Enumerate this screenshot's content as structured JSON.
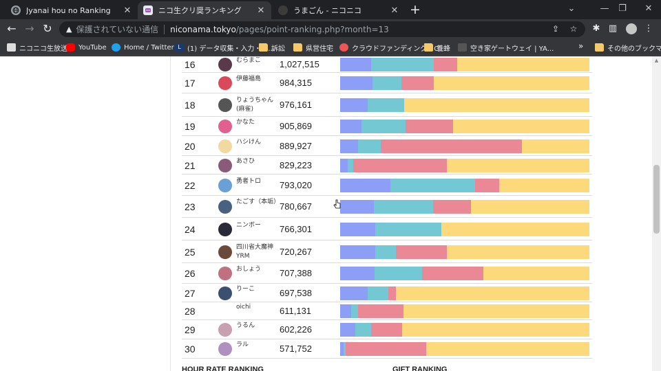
{
  "tabs": [
    {
      "title": "Jyanai hou no Ranking",
      "favicon": "globe-icon",
      "active": false
    },
    {
      "title": "ニコ生クリ奨ランキング",
      "favicon": "niconico-icon",
      "active": true
    },
    {
      "title": "うまごん - ニコニコ",
      "favicon": "niconico-dark-icon",
      "active": false
    }
  ],
  "toolbar": {
    "security_label": "保護されていない通信",
    "url_host": "niconama.tokyo",
    "url_path": "/pages/point-ranking.php?month=13"
  },
  "bookmarks": [
    {
      "label": "ニコニコ生放送",
      "icon": "niconico-icon"
    },
    {
      "label": "YouTube",
      "icon": "youtube-icon"
    },
    {
      "label": "Home / Twitter",
      "icon": "twitter-icon"
    },
    {
      "label": "(1) データ収集・入力・リ...",
      "icon": "lancers-icon"
    },
    {
      "label": "訴訟",
      "icon": "folder-icon"
    },
    {
      "label": "県営住宅",
      "icon": "folder-icon"
    },
    {
      "label": "クラウドファンディング - C...",
      "icon": "camp-icon"
    },
    {
      "label": "養蜂",
      "icon": "folder-icon"
    },
    {
      "label": "空き家ゲートウェイ | YA...",
      "icon": "akiya-icon"
    }
  ],
  "bookmarks_more": "»",
  "bookmarks_other": "その他のブックマーク",
  "colors": {
    "seg_blue": "#8c9ef5",
    "seg_teal": "#74c8d4",
    "seg_pink": "#ea8895",
    "seg_yellow": "#fcd97a"
  },
  "ranking": [
    {
      "rank": "16",
      "name": "むらまこ",
      "points": "1,027,515",
      "segments": [
        12.5,
        25.0,
        9.5,
        53.0
      ]
    },
    {
      "rank": "17",
      "name": "伊藤福島",
      "points": "984,315",
      "segments": [
        13.0,
        11.5,
        13.0,
        62.5
      ]
    },
    {
      "rank": "18",
      "name": "りょうちゃん(麻雀)",
      "points": "976,161",
      "segments": [
        11.0,
        14.7,
        0.0,
        74.3
      ]
    },
    {
      "rank": "19",
      "name": "かなた",
      "points": "905,869",
      "segments": [
        8.6,
        17.7,
        19.1,
        54.6
      ]
    },
    {
      "rank": "20",
      "name": "ハシけん",
      "points": "889,927",
      "segments": [
        7.2,
        9.1,
        56.6,
        27.1
      ]
    },
    {
      "rank": "21",
      "name": "あさひ",
      "points": "829,223",
      "segments": [
        3.0,
        2.2,
        37.7,
        57.1
      ]
    },
    {
      "rank": "22",
      "name": "勇者トロ",
      "points": "793,020",
      "segments": [
        20.2,
        34.0,
        9.7,
        36.1
      ]
    },
    {
      "rank": "23",
      "name": "たごす（本垢）",
      "points": "780,667",
      "segments": [
        13.5,
        23.8,
        15.2,
        47.5
      ]
    },
    {
      "rank": "24",
      "name": "ニンボー",
      "points": "766,301",
      "segments": [
        14.1,
        26.5,
        0.0,
        59.4
      ]
    },
    {
      "rank": "25",
      "name": "四川省大魔神YRM",
      "points": "720,267",
      "segments": [
        14.1,
        8.3,
        20.4,
        57.2
      ]
    },
    {
      "rank": "26",
      "name": "おしょう",
      "points": "707,388",
      "segments": [
        13.8,
        19.1,
        24.6,
        42.5
      ]
    },
    {
      "rank": "27",
      "name": "りーこ",
      "points": "697,538",
      "segments": [
        11.0,
        8.3,
        3.0,
        77.7
      ]
    },
    {
      "rank": "28",
      "name": "oichi",
      "points": "611,131",
      "segments": [
        4.4,
        2.8,
        18.2,
        74.6
      ]
    },
    {
      "rank": "29",
      "name": "うるん",
      "points": "602,226",
      "segments": [
        6.1,
        6.4,
        12.4,
        75.1
      ]
    },
    {
      "rank": "30",
      "name": "ラル",
      "points": "571,752",
      "segments": [
        1.4,
        0.8,
        32.3,
        65.5
      ]
    }
  ],
  "sections": {
    "hour_rate": "HOUR RATE RANKING",
    "gift": "GIFT RANKING"
  }
}
